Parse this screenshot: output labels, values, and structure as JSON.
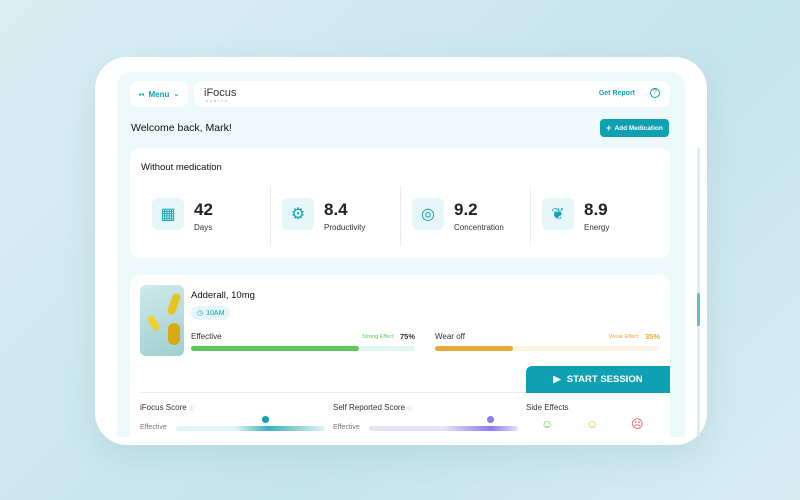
{
  "header": {
    "menu_label": "Menu",
    "logo": "iFocus",
    "logo_sub": "HABITS",
    "get_report": "Get Report"
  },
  "welcome": "Welcome back, Mark!",
  "add_medication": "Add Medication",
  "without_med": {
    "title": "Without medication",
    "stats": [
      {
        "value": "42",
        "label": "Days",
        "icon": "calendar-icon"
      },
      {
        "value": "8.4",
        "label": "Productivity",
        "icon": "productivity-icon"
      },
      {
        "value": "9.2",
        "label": "Concentration",
        "icon": "target-icon"
      },
      {
        "value": "8.9",
        "label": "Energy",
        "icon": "energy-leaf-icon"
      }
    ]
  },
  "medication": {
    "name": "Adderall, 10mg",
    "time": "10AM",
    "effective": {
      "label": "Effective",
      "tag": "Strong Effect",
      "value": "75%",
      "percent": 75,
      "color": "#5cc85a"
    },
    "wearoff": {
      "label": "Wear off",
      "tag": "Weak Effect",
      "value": "35%",
      "percent": 35,
      "color": "#e8a93a"
    },
    "start_session": "START SESSION"
  },
  "scores": {
    "ifocus": {
      "title": "iFocus Score",
      "row_label": "Effective"
    },
    "self": {
      "title": "Self Reported Score",
      "row_label": "Effective"
    },
    "side_effects": {
      "title": "Side Effects"
    }
  },
  "colors": {
    "accent": "#0fa1b1",
    "purple": "#8b7cf0"
  }
}
